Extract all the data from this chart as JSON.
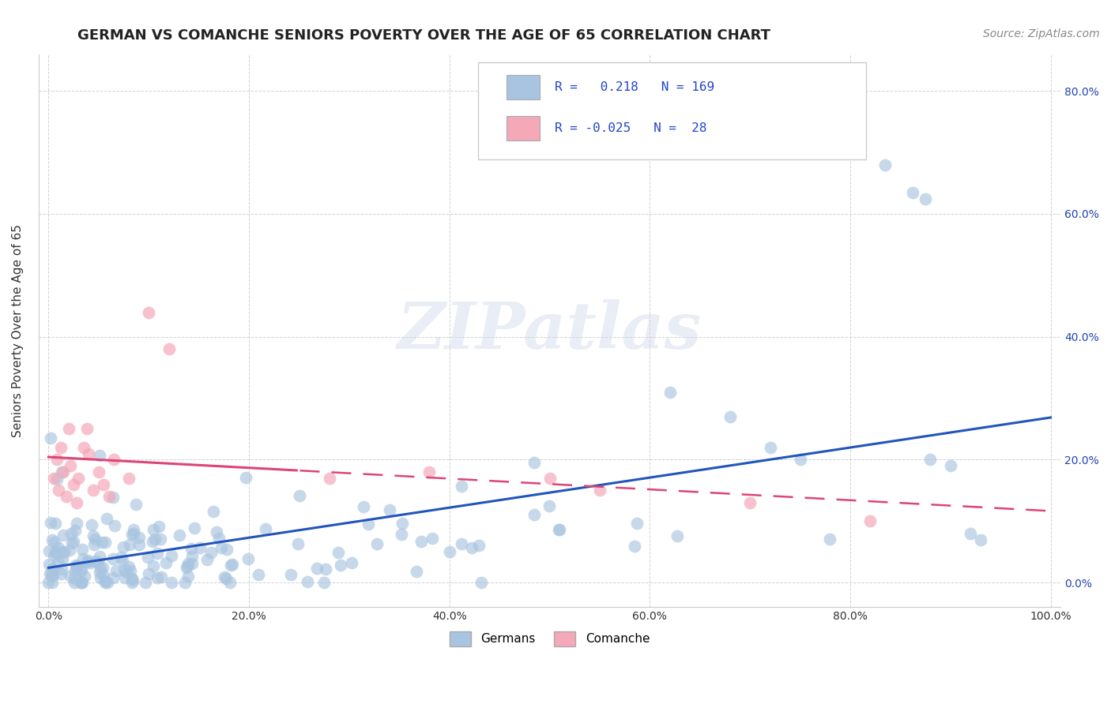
{
  "title": "GERMAN VS COMANCHE SENIORS POVERTY OVER THE AGE OF 65 CORRELATION CHART",
  "source": "Source: ZipAtlas.com",
  "ylabel": "Seniors Poverty Over the Age of 65",
  "xlabel": "",
  "xlim": [
    -0.01,
    1.01
  ],
  "ylim": [
    -0.04,
    0.86
  ],
  "xticks": [
    0.0,
    0.2,
    0.4,
    0.6,
    0.8,
    1.0
  ],
  "yticks": [
    0.0,
    0.2,
    0.4,
    0.6,
    0.8
  ],
  "ytick_labels_right": [
    "0.0%",
    "20.0%",
    "40.0%",
    "60.0%",
    "80.0%"
  ],
  "xtick_labels": [
    "0.0%",
    "20.0%",
    "40.0%",
    "60.0%",
    "80.0%",
    "100.0%"
  ],
  "german_color": "#a8c4e0",
  "comanche_color": "#f4a8b8",
  "german_line_color": "#2255bb",
  "comanche_line_color": "#dd4477",
  "R_german": 0.218,
  "N_german": 169,
  "R_comanche": -0.025,
  "N_comanche": 28,
  "watermark_text": "ZIPatlas",
  "legend_entries": [
    "Germans",
    "Comanche"
  ],
  "title_fontsize": 13,
  "axis_fontsize": 11,
  "tick_fontsize": 10,
  "source_fontsize": 10,
  "grid_color": "#cccccc",
  "background_color": "#ffffff"
}
